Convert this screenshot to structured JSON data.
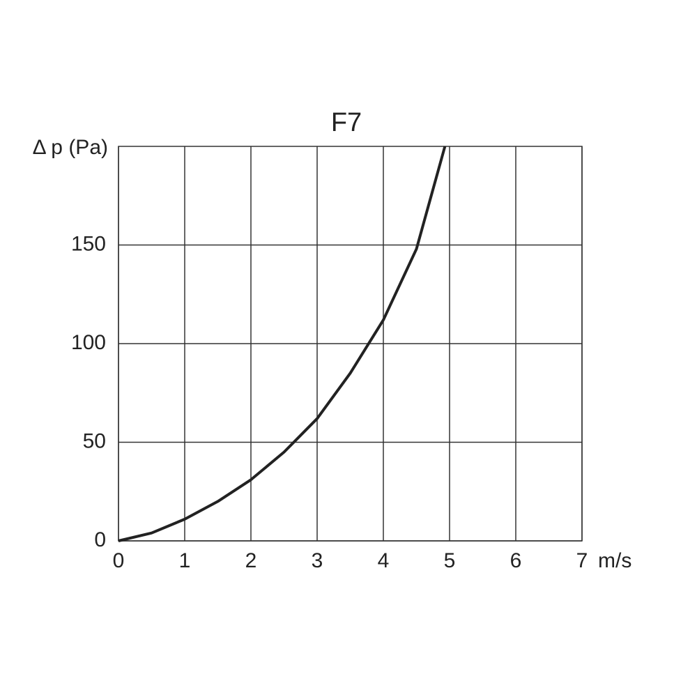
{
  "chart_data": {
    "type": "line",
    "title": "F7",
    "y_label": "Δ p (Pa)",
    "x_label": "m/s",
    "x": [
      0,
      0.5,
      1,
      1.5,
      2,
      2.5,
      3,
      3.5,
      4,
      4.5,
      4.93
    ],
    "values": [
      0,
      4,
      11,
      20,
      31,
      45,
      62,
      85,
      112,
      148,
      200
    ],
    "color": "#222222",
    "xlim": [
      0,
      7
    ],
    "xticks": [
      0,
      1,
      2,
      3,
      4,
      5,
      6,
      7
    ],
    "ylim": [
      0,
      200
    ],
    "yticks": [
      0,
      50,
      100,
      150
    ],
    "grid": true
  }
}
